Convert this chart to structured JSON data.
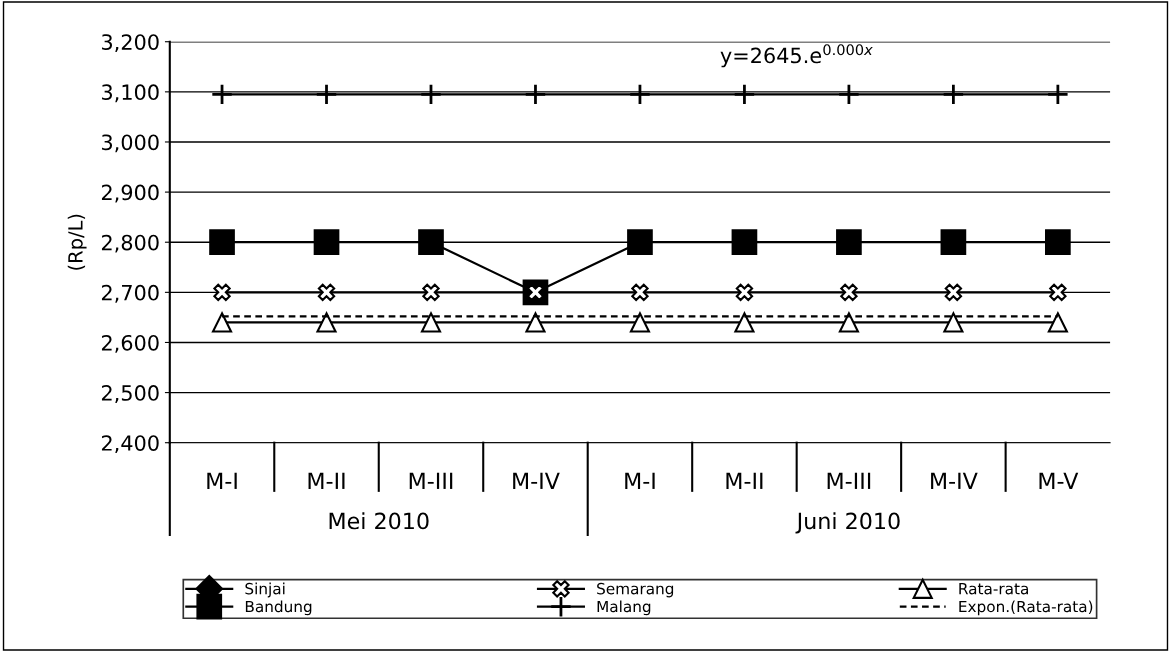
{
  "chart_data": {
    "type": "line",
    "ylabel": "(Rp/L)",
    "categories": [
      "M-I",
      "M-II",
      "M-III",
      "M-IV",
      "M-I",
      "M-II",
      "M-III",
      "M-IV",
      "M-V"
    ],
    "series": [
      {
        "name": "Sinjai",
        "color": "#000000",
        "marker": "diamond",
        "values": [
          null,
          null,
          null,
          null,
          null,
          null,
          null,
          null,
          null
        ]
      },
      {
        "name": "Bandung",
        "color": "#000000",
        "marker": "square",
        "values": [
          2800,
          2800,
          2800,
          2700,
          2800,
          2800,
          2800,
          2800,
          2800
        ]
      },
      {
        "name": "Semarang",
        "color": "#000000",
        "marker": "cross",
        "values": [
          2700,
          2700,
          2700,
          2700,
          2700,
          2700,
          2700,
          2700,
          2700
        ]
      },
      {
        "name": "Malang",
        "color": "#000000",
        "marker": "plus",
        "values": [
          3095,
          3095,
          3095,
          3095,
          3095,
          3095,
          3095,
          3095,
          3095
        ]
      },
      {
        "name": "Rata-rata",
        "color": "#000000",
        "marker": "triangle",
        "values": [
          2640,
          2640,
          2640,
          2640,
          2640,
          2640,
          2640,
          2640,
          2640
        ]
      },
      {
        "name": "Expon.(Rata-rata)",
        "color": "#000000",
        "marker": "none",
        "line_style": "dashed",
        "values": [
          2652,
          2652,
          2652,
          2652,
          2652,
          2652,
          2652,
          2652,
          2652
        ]
      }
    ],
    "ylim": [
      2400,
      3200
    ],
    "yticks": [
      {
        "value": 2400,
        "label": "2,400"
      },
      {
        "value": 2500,
        "label": "2,500"
      },
      {
        "value": 2600,
        "label": "2,600"
      },
      {
        "value": 2700,
        "label": "2,700"
      },
      {
        "value": 2800,
        "label": "2,800"
      },
      {
        "value": 2900,
        "label": "2,900"
      },
      {
        "value": 3000,
        "label": "3,000"
      },
      {
        "value": 3100,
        "label": "3,100"
      },
      {
        "value": 3200,
        "label": "3,200"
      }
    ],
    "grid": "y",
    "legend": "bottom",
    "annotations": [
      "y=2645.e$^{0.000x}$",
      "Mei 2010",
      "Juni 2010"
    ]
  }
}
